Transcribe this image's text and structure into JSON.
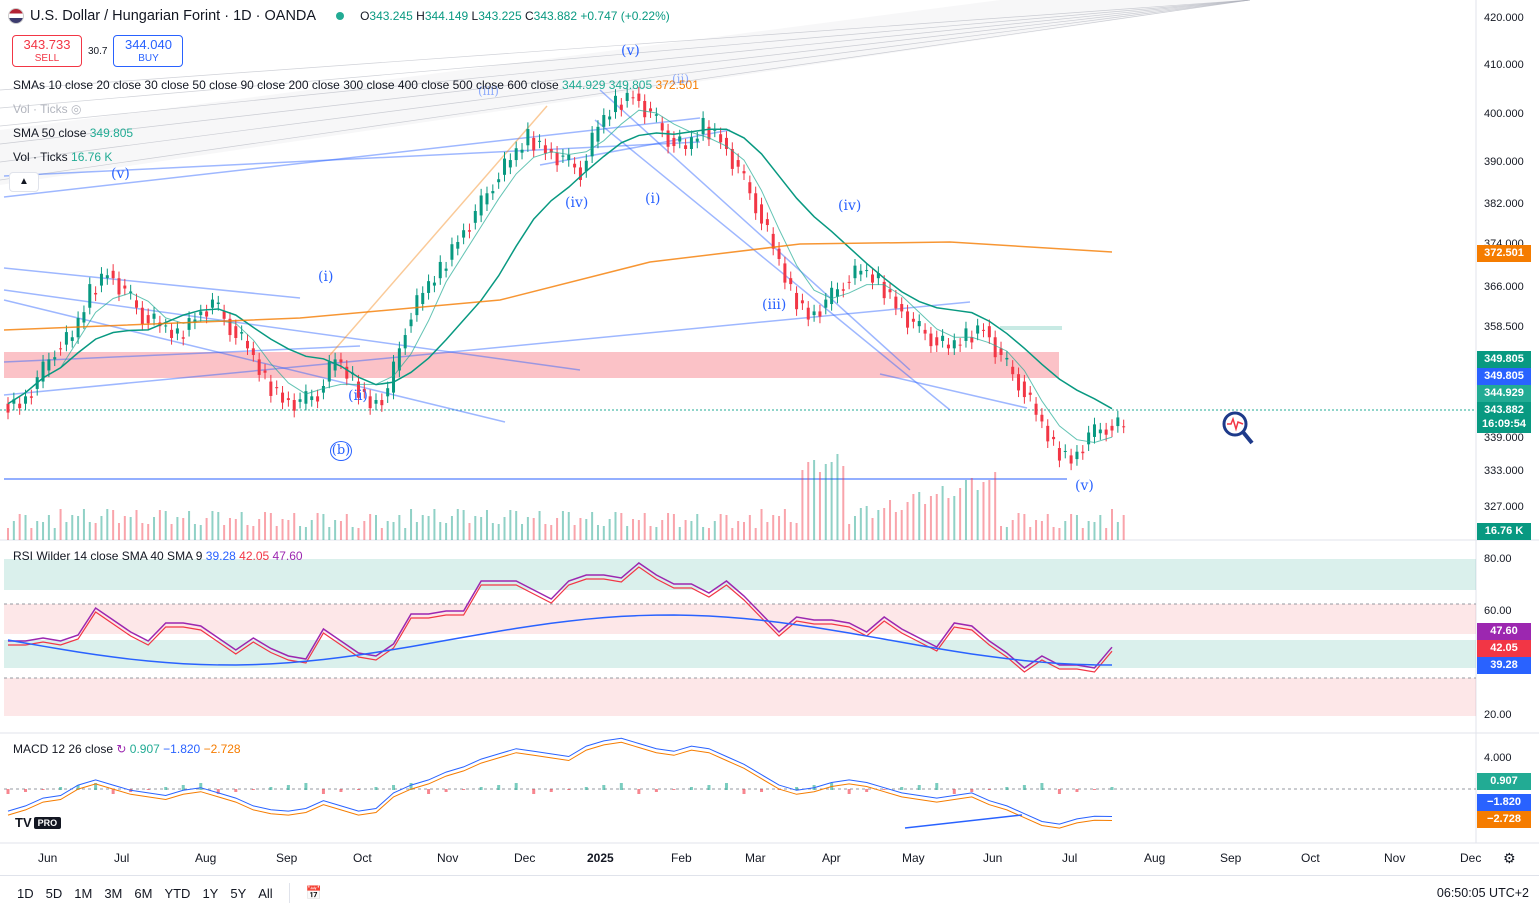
{
  "header": {
    "title": "U.S. Dollar / Hungarian Forint · 1D · OANDA",
    "ohlc": {
      "o_label": "O",
      "o": "343.245",
      "h_label": "H",
      "h": "344.149",
      "l_label": "L",
      "l": "343.225",
      "c_label": "C",
      "c": "343.882",
      "change": "+0.747 (+0.22%)"
    }
  },
  "trade": {
    "sell_price": "343.733",
    "sell_label": "SELL",
    "spread": "30.7",
    "buy_price": "344.040",
    "buy_label": "BUY"
  },
  "legends": {
    "smas": "SMAs 10 close 20 close 30 close 50 close 90 close 200 close 300 close 400 close 500 close 600 close",
    "smas_v1": "344.929",
    "smas_v2": "349.805",
    "smas_v3": "372.501",
    "vol_hidden": "Vol · Ticks",
    "sma50": "SMA 50 close",
    "sma50_v": "349.805",
    "vol": "Vol · Ticks",
    "vol_v": "16.76 K",
    "rsi": "RSI Wilder 14 close SMA 40 SMA 9",
    "rsi_v1": "39.28",
    "rsi_v2": "42.05",
    "rsi_v3": "47.60",
    "macd": "MACD 12 26 close",
    "macd_v1": "0.907",
    "macd_v2": "−1.820",
    "macd_v3": "−2.728"
  },
  "price_axis": [
    "420.000",
    "410.000",
    "400.000",
    "390.000",
    "382.000",
    "374.000",
    "366.000",
    "358.500",
    "339.000",
    "333.000",
    "327.000"
  ],
  "price_badges": [
    {
      "text": "372.501",
      "color": "#f57c00"
    },
    {
      "text": "349.805",
      "color": "#089981"
    },
    {
      "text": "349.805",
      "color": "#2962ff"
    },
    {
      "text": "344.929",
      "color": "#22ab94"
    },
    {
      "text": "343.882",
      "color": "#089981"
    },
    {
      "text": "16:09:54",
      "color": "#089981"
    },
    {
      "text": "16.76 K",
      "color": "#089981"
    }
  ],
  "rsi_axis": [
    "80.00",
    "60.00",
    "20.00"
  ],
  "rsi_badges": [
    {
      "text": "47.60",
      "color": "#9c27b0"
    },
    {
      "text": "42.05",
      "color": "#f23645"
    },
    {
      "text": "39.28",
      "color": "#2962ff"
    }
  ],
  "macd_axis": [
    "4.000"
  ],
  "macd_badges": [
    {
      "text": "0.907",
      "color": "#22ab94"
    },
    {
      "text": "−1.820",
      "color": "#2962ff"
    },
    {
      "text": "−2.728",
      "color": "#f57c00"
    }
  ],
  "time_axis": [
    "Jun",
    "Jul",
    "Aug",
    "Sep",
    "Oct",
    "Nov",
    "Dec",
    "2025",
    "Feb",
    "Mar",
    "Apr",
    "May",
    "Jun",
    "Jul",
    "Aug",
    "Sep",
    "Oct",
    "Nov",
    "Dec"
  ],
  "ranges": [
    "1D",
    "5D",
    "1M",
    "3M",
    "6M",
    "YTD",
    "1Y",
    "5Y",
    "All"
  ],
  "clock": "06:50:05 UTC+2",
  "logo": {
    "brand": "TV",
    "pro": "PRO"
  },
  "waves": [
    {
      "t": "(v)",
      "c": "blue"
    },
    {
      "t": "(iii)",
      "c": "blue"
    },
    {
      "t": "(iv)",
      "c": "blue"
    },
    {
      "t": "(i)",
      "c": "blue"
    },
    {
      "t": "(ii)",
      "c": "blue"
    },
    {
      "t": "(iv)",
      "c": "blue"
    },
    {
      "t": "(iii)",
      "c": "blue"
    },
    {
      "t": "(i)",
      "c": "blue"
    },
    {
      "t": "(ii)",
      "c": "blue"
    },
    {
      "t": "(v)",
      "c": "blue"
    },
    {
      "t": "(v)",
      "c": "blue"
    },
    {
      "t": "(b)",
      "c": "blue"
    }
  ],
  "chart_data": {
    "type": "candlestick",
    "symbol": "USDHUF",
    "interval": "1D",
    "price_range": [
      327,
      420
    ],
    "close_path": [
      348,
      352,
      358,
      360,
      368,
      372,
      368,
      364,
      362,
      360,
      364,
      366,
      362,
      358,
      352,
      349,
      348,
      350,
      356,
      352,
      348,
      350,
      362,
      368,
      372,
      378,
      382,
      388,
      392,
      396,
      394,
      392,
      390,
      398,
      402,
      404,
      400,
      396,
      394,
      398,
      396,
      390,
      384,
      376,
      368,
      364,
      366,
      370,
      372,
      370,
      366,
      362,
      360,
      358,
      360,
      362,
      356,
      352,
      346,
      340,
      338,
      342,
      344,
      343.882
    ],
    "rsi": {
      "range": [
        20,
        80
      ],
      "last": [
        39.28,
        42.05,
        47.6
      ]
    },
    "macd": {
      "last": [
        0.907,
        -1.82,
        -2.728
      ]
    }
  }
}
